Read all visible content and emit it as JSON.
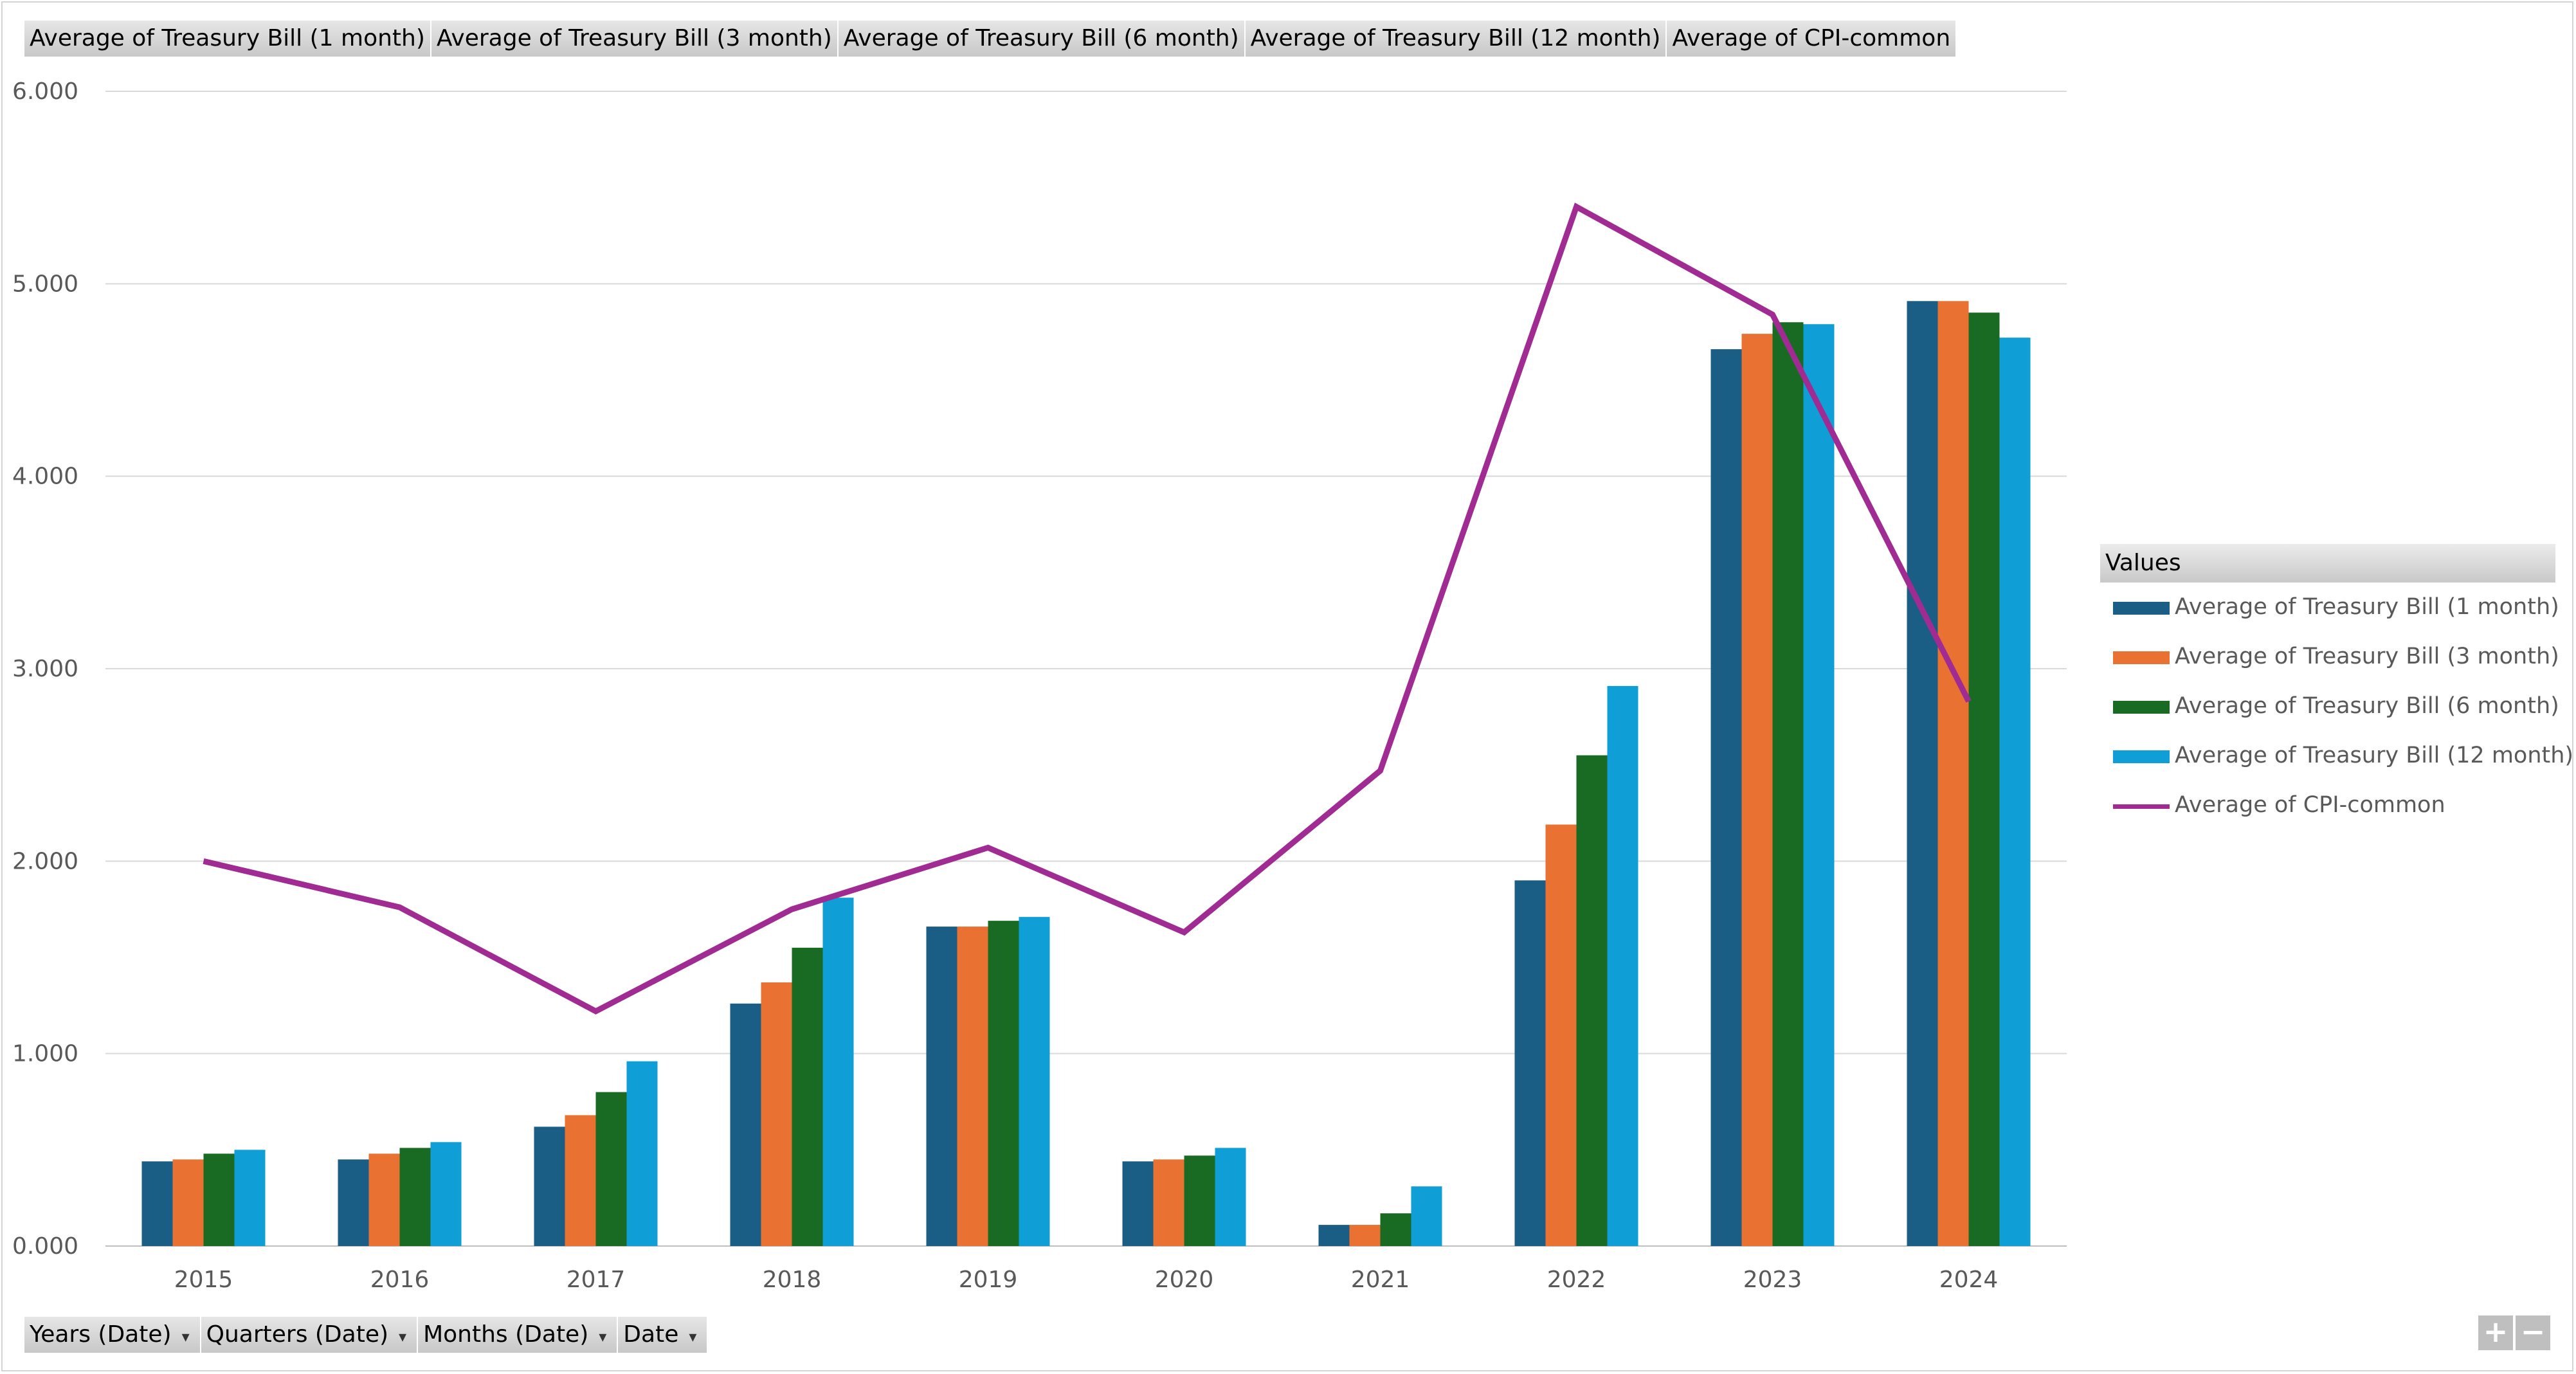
{
  "top_field_buttons": [
    "Average of Treasury Bill (1 month)",
    "Average of Treasury Bill (3 month)",
    "Average of Treasury Bill (6 month)",
    "Average of Treasury Bill (12 month)",
    "Average of CPI-common"
  ],
  "bottom_field_buttons": [
    "Years (Date)",
    "Quarters (Date)",
    "Months (Date)",
    "Date"
  ],
  "dropdown_glyph": "▾",
  "legend": {
    "title": "Values"
  },
  "zoom": {
    "plus": "+",
    "minus": "−"
  },
  "chart_data": {
    "type": "bar",
    "categories": [
      "2015",
      "2016",
      "2017",
      "2018",
      "2019",
      "2020",
      "2021",
      "2022",
      "2023",
      "2024"
    ],
    "series": [
      {
        "name": "Average of Treasury Bill (1 month)",
        "type": "bar",
        "color": "#1b5e85",
        "values": [
          0.44,
          0.45,
          0.62,
          1.26,
          1.66,
          0.44,
          0.11,
          1.9,
          4.66,
          4.91
        ]
      },
      {
        "name": "Average of Treasury Bill (3 month)",
        "type": "bar",
        "color": "#e97132",
        "values": [
          0.45,
          0.48,
          0.68,
          1.37,
          1.66,
          0.45,
          0.11,
          2.19,
          4.74,
          4.91
        ]
      },
      {
        "name": "Average of Treasury Bill (6 month)",
        "type": "bar",
        "color": "#196b24",
        "values": [
          0.48,
          0.51,
          0.8,
          1.55,
          1.69,
          0.47,
          0.17,
          2.55,
          4.8,
          4.85
        ]
      },
      {
        "name": "Average of Treasury Bill (12 month)",
        "type": "bar",
        "color": "#0f9ed5",
        "values": [
          0.5,
          0.54,
          0.96,
          1.81,
          1.71,
          0.51,
          0.31,
          2.91,
          4.79,
          4.72
        ]
      },
      {
        "name": "Average of CPI-common",
        "type": "line",
        "color": "#a02b93",
        "values": [
          2.0,
          1.76,
          1.22,
          1.75,
          2.07,
          1.63,
          2.47,
          5.4,
          4.84,
          2.83
        ]
      }
    ],
    "ylim": [
      0,
      6
    ],
    "yticks": [
      "0.000",
      "1.000",
      "2.000",
      "3.000",
      "4.000",
      "5.000",
      "6.000"
    ],
    "grid": true,
    "legend_position": "right"
  }
}
